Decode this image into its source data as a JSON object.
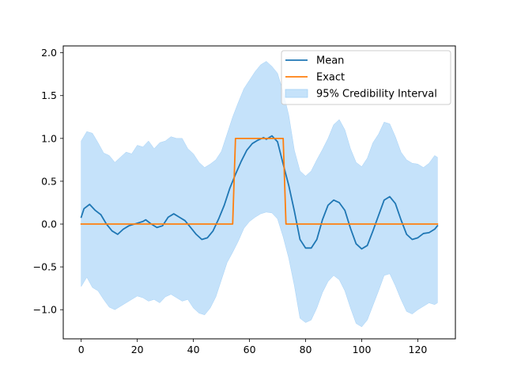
{
  "chart_data": {
    "type": "line",
    "title": "",
    "xlabel": "",
    "ylabel": "",
    "xlim": [
      -6.4,
      133.4
    ],
    "ylim": [
      -1.34,
      2.08
    ],
    "x_ticks": [
      0,
      20,
      40,
      60,
      80,
      100,
      120
    ],
    "x_tick_labels": [
      "0",
      "20",
      "40",
      "60",
      "80",
      "100",
      "120"
    ],
    "y_ticks": [
      -1.0,
      -0.5,
      0.0,
      0.5,
      1.0,
      1.5,
      2.0
    ],
    "y_tick_labels": [
      "−1.0",
      "−0.5",
      "0.0",
      "0.5",
      "1.0",
      "1.5",
      "2.0"
    ],
    "grid": false,
    "legend_position": "top-right",
    "series": [
      {
        "name": "Mean",
        "kind": "line",
        "color": "#1f77b4",
        "points": [
          [
            0,
            0.08
          ],
          [
            1,
            0.18
          ],
          [
            3,
            0.23
          ],
          [
            5,
            0.16
          ],
          [
            7,
            0.11
          ],
          [
            9,
            0.0
          ],
          [
            11,
            -0.08
          ],
          [
            13,
            -0.12
          ],
          [
            15,
            -0.06
          ],
          [
            17,
            -0.02
          ],
          [
            20,
            0.01
          ],
          [
            22,
            0.03
          ],
          [
            23,
            0.05
          ],
          [
            25,
            0.0
          ],
          [
            27,
            -0.04
          ],
          [
            29,
            -0.02
          ],
          [
            31,
            0.08
          ],
          [
            33,
            0.12
          ],
          [
            35,
            0.08
          ],
          [
            37,
            0.04
          ],
          [
            39,
            -0.04
          ],
          [
            41,
            -0.12
          ],
          [
            43,
            -0.18
          ],
          [
            45,
            -0.16
          ],
          [
            47,
            -0.08
          ],
          [
            49,
            0.06
          ],
          [
            51,
            0.22
          ],
          [
            53,
            0.42
          ],
          [
            55,
            0.58
          ],
          [
            57,
            0.73
          ],
          [
            59,
            0.86
          ],
          [
            61,
            0.94
          ],
          [
            63,
            0.98
          ],
          [
            65,
            1.01
          ],
          [
            66,
            0.99
          ],
          [
            68,
            1.03
          ],
          [
            70,
            0.96
          ],
          [
            72,
            0.7
          ],
          [
            74,
            0.45
          ],
          [
            76,
            0.15
          ],
          [
            78,
            -0.18
          ],
          [
            80,
            -0.28
          ],
          [
            82,
            -0.28
          ],
          [
            84,
            -0.18
          ],
          [
            86,
            0.05
          ],
          [
            88,
            0.22
          ],
          [
            90,
            0.28
          ],
          [
            92,
            0.25
          ],
          [
            94,
            0.16
          ],
          [
            96,
            -0.05
          ],
          [
            98,
            -0.23
          ],
          [
            100,
            -0.29
          ],
          [
            102,
            -0.25
          ],
          [
            104,
            -0.08
          ],
          [
            106,
            0.1
          ],
          [
            108,
            0.28
          ],
          [
            110,
            0.32
          ],
          [
            112,
            0.24
          ],
          [
            114,
            0.05
          ],
          [
            116,
            -0.12
          ],
          [
            118,
            -0.18
          ],
          [
            120,
            -0.16
          ],
          [
            122,
            -0.11
          ],
          [
            124,
            -0.1
          ],
          [
            126,
            -0.06
          ],
          [
            127,
            -0.02
          ]
        ]
      },
      {
        "name": "Exact",
        "kind": "line",
        "color": "#ff7f0e",
        "points": [
          [
            0,
            0
          ],
          [
            54,
            0
          ],
          [
            55,
            1
          ],
          [
            72,
            1
          ],
          [
            73,
            0
          ],
          [
            127,
            0
          ]
        ]
      },
      {
        "name": "95% Credibility Interval",
        "kind": "band",
        "color": "#a6d2f7",
        "upper": [
          [
            0,
            0.97
          ],
          [
            2,
            1.08
          ],
          [
            4,
            1.06
          ],
          [
            6,
            0.95
          ],
          [
            8,
            0.83
          ],
          [
            10,
            0.8
          ],
          [
            12,
            0.72
          ],
          [
            14,
            0.78
          ],
          [
            16,
            0.84
          ],
          [
            18,
            0.82
          ],
          [
            20,
            0.92
          ],
          [
            22,
            0.9
          ],
          [
            24,
            0.97
          ],
          [
            26,
            0.88
          ],
          [
            28,
            0.95
          ],
          [
            30,
            0.97
          ],
          [
            32,
            1.02
          ],
          [
            34,
            1.0
          ],
          [
            36,
            1.0
          ],
          [
            38,
            0.88
          ],
          [
            40,
            0.82
          ],
          [
            42,
            0.72
          ],
          [
            44,
            0.66
          ],
          [
            46,
            0.7
          ],
          [
            48,
            0.75
          ],
          [
            50,
            0.85
          ],
          [
            52,
            1.05
          ],
          [
            54,
            1.25
          ],
          [
            56,
            1.42
          ],
          [
            58,
            1.58
          ],
          [
            60,
            1.68
          ],
          [
            62,
            1.78
          ],
          [
            64,
            1.86
          ],
          [
            66,
            1.9
          ],
          [
            68,
            1.84
          ],
          [
            70,
            1.76
          ],
          [
            72,
            1.54
          ],
          [
            74,
            1.27
          ],
          [
            76,
            0.86
          ],
          [
            78,
            0.62
          ],
          [
            80,
            0.56
          ],
          [
            82,
            0.62
          ],
          [
            84,
            0.75
          ],
          [
            86,
            0.87
          ],
          [
            88,
            1.0
          ],
          [
            90,
            1.16
          ],
          [
            92,
            1.22
          ],
          [
            94,
            1.1
          ],
          [
            96,
            0.88
          ],
          [
            98,
            0.72
          ],
          [
            100,
            0.67
          ],
          [
            102,
            0.77
          ],
          [
            104,
            0.95
          ],
          [
            106,
            1.05
          ],
          [
            108,
            1.19
          ],
          [
            110,
            1.17
          ],
          [
            112,
            1.02
          ],
          [
            114,
            0.84
          ],
          [
            116,
            0.75
          ],
          [
            118,
            0.71
          ],
          [
            120,
            0.7
          ],
          [
            122,
            0.66
          ],
          [
            124,
            0.71
          ],
          [
            126,
            0.8
          ],
          [
            127,
            0.78
          ]
        ],
        "lower": [
          [
            0,
            -0.73
          ],
          [
            2,
            -0.62
          ],
          [
            4,
            -0.74
          ],
          [
            6,
            -0.78
          ],
          [
            8,
            -0.88
          ],
          [
            10,
            -0.97
          ],
          [
            12,
            -1.0
          ],
          [
            14,
            -0.96
          ],
          [
            16,
            -0.92
          ],
          [
            18,
            -0.88
          ],
          [
            20,
            -0.84
          ],
          [
            22,
            -0.86
          ],
          [
            24,
            -0.9
          ],
          [
            26,
            -0.88
          ],
          [
            28,
            -0.92
          ],
          [
            30,
            -0.85
          ],
          [
            32,
            -0.82
          ],
          [
            34,
            -0.86
          ],
          [
            36,
            -0.9
          ],
          [
            38,
            -0.88
          ],
          [
            40,
            -0.98
          ],
          [
            42,
            -1.04
          ],
          [
            44,
            -1.06
          ],
          [
            46,
            -0.98
          ],
          [
            48,
            -0.85
          ],
          [
            50,
            -0.65
          ],
          [
            52,
            -0.45
          ],
          [
            54,
            -0.33
          ],
          [
            56,
            -0.2
          ],
          [
            58,
            -0.05
          ],
          [
            60,
            0.03
          ],
          [
            62,
            0.08
          ],
          [
            64,
            0.12
          ],
          [
            66,
            0.14
          ],
          [
            68,
            0.13
          ],
          [
            70,
            0.06
          ],
          [
            72,
            -0.15
          ],
          [
            74,
            -0.4
          ],
          [
            76,
            -0.72
          ],
          [
            78,
            -1.1
          ],
          [
            80,
            -1.15
          ],
          [
            82,
            -1.12
          ],
          [
            84,
            -0.98
          ],
          [
            86,
            -0.8
          ],
          [
            88,
            -0.67
          ],
          [
            90,
            -0.6
          ],
          [
            92,
            -0.65
          ],
          [
            94,
            -0.78
          ],
          [
            96,
            -0.98
          ],
          [
            98,
            -1.16
          ],
          [
            100,
            -1.2
          ],
          [
            102,
            -1.12
          ],
          [
            104,
            -0.95
          ],
          [
            106,
            -0.78
          ],
          [
            108,
            -0.6
          ],
          [
            110,
            -0.58
          ],
          [
            112,
            -0.72
          ],
          [
            114,
            -0.88
          ],
          [
            116,
            -1.02
          ],
          [
            118,
            -1.05
          ],
          [
            120,
            -1.0
          ],
          [
            122,
            -0.96
          ],
          [
            124,
            -0.92
          ],
          [
            126,
            -0.94
          ],
          [
            127,
            -0.92
          ]
        ]
      }
    ]
  }
}
